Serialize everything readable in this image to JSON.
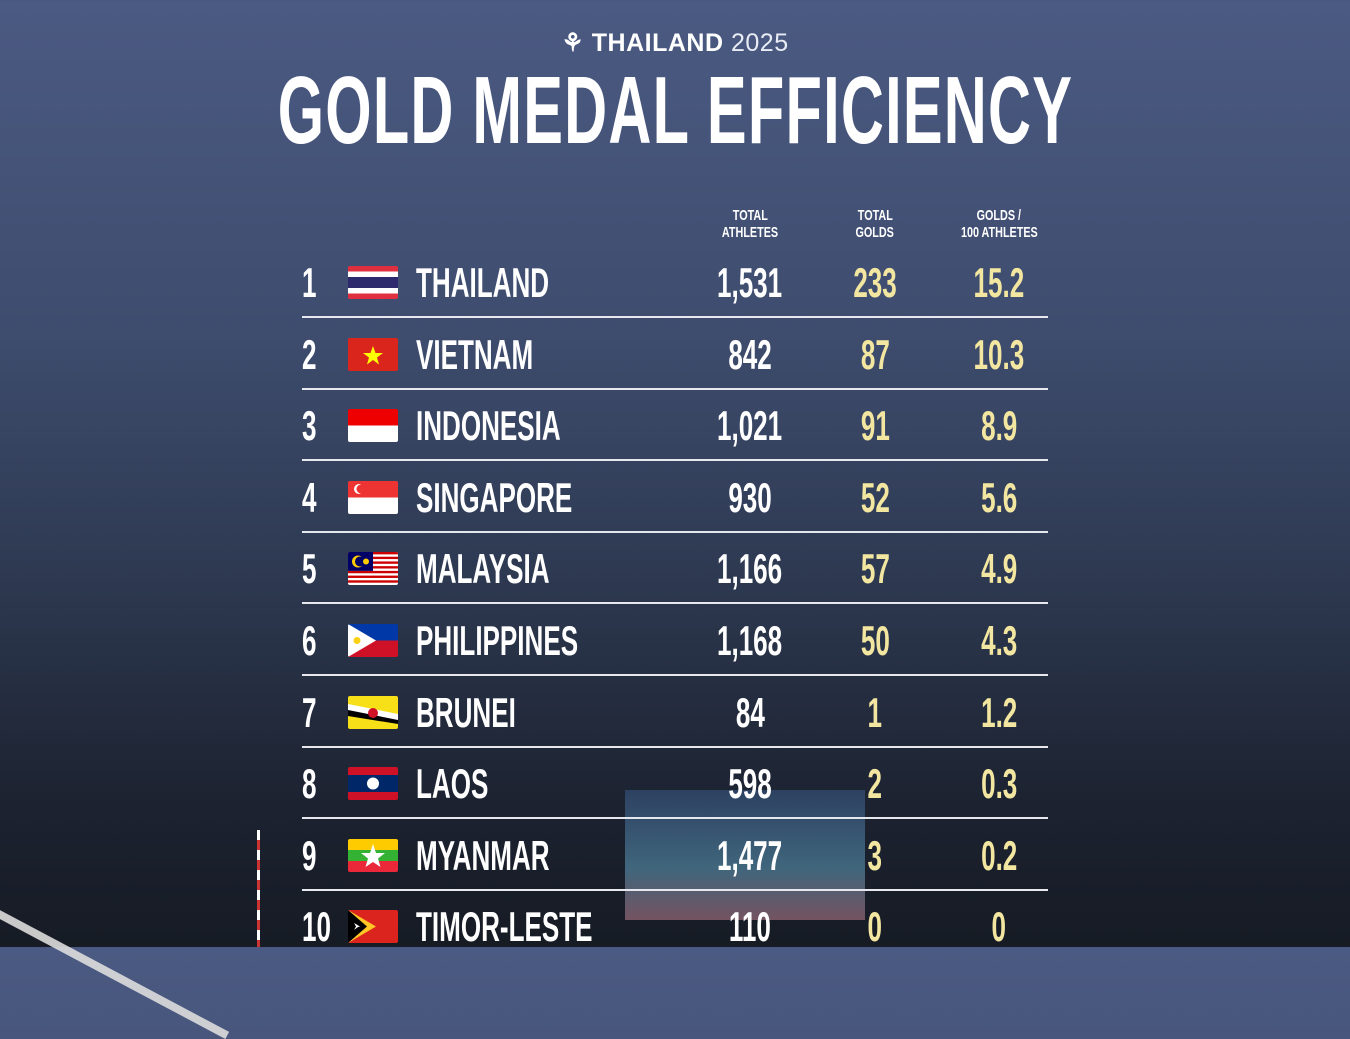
{
  "brand": {
    "name": "THAILAND",
    "year": "2025"
  },
  "title": "GOLD MEDAL EFFICIENCY",
  "colors": {
    "gold_text": "#f2e6a0",
    "background": "#3e4c6e"
  },
  "chart_data": {
    "type": "table",
    "title": "GOLD MEDAL EFFICIENCY",
    "columns": [
      "TOTAL ATHLETES",
      "TOTAL GOLDS",
      "GOLDS / 100 ATHLETES"
    ],
    "rows": [
      {
        "rank": "1",
        "country": "THAILAND",
        "flag": "thailand",
        "athletes": "1,531",
        "golds": "233",
        "ratio": "15.2"
      },
      {
        "rank": "2",
        "country": "VIETNAM",
        "flag": "vietnam",
        "athletes": "842",
        "golds": "87",
        "ratio": "10.3"
      },
      {
        "rank": "3",
        "country": "INDONESIA",
        "flag": "indonesia",
        "athletes": "1,021",
        "golds": "91",
        "ratio": "8.9"
      },
      {
        "rank": "4",
        "country": "SINGAPORE",
        "flag": "singapore",
        "athletes": "930",
        "golds": "52",
        "ratio": "5.6"
      },
      {
        "rank": "5",
        "country": "MALAYSIA",
        "flag": "malaysia",
        "athletes": "1,166",
        "golds": "57",
        "ratio": "4.9"
      },
      {
        "rank": "6",
        "country": "PHILIPPINES",
        "flag": "philippines",
        "athletes": "1,168",
        "golds": "50",
        "ratio": "4.3"
      },
      {
        "rank": "7",
        "country": "BRUNEI",
        "flag": "brunei",
        "athletes": "84",
        "golds": "1",
        "ratio": "1.2"
      },
      {
        "rank": "8",
        "country": "LAOS",
        "flag": "laos",
        "athletes": "598",
        "golds": "2",
        "ratio": "0.3"
      },
      {
        "rank": "9",
        "country": "MYANMAR",
        "flag": "myanmar",
        "athletes": "1,477",
        "golds": "3",
        "ratio": "0.2"
      },
      {
        "rank": "10",
        "country": "TIMOR-LESTE",
        "flag": "timor-leste",
        "athletes": "110",
        "golds": "0",
        "ratio": "0"
      }
    ]
  },
  "headers": {
    "athletes": [
      "TOTAL",
      "ATHLETES"
    ],
    "golds": [
      "TOTAL",
      "GOLDS"
    ],
    "ratio": [
      "GOLDS /",
      "100 ATHLETES"
    ]
  }
}
